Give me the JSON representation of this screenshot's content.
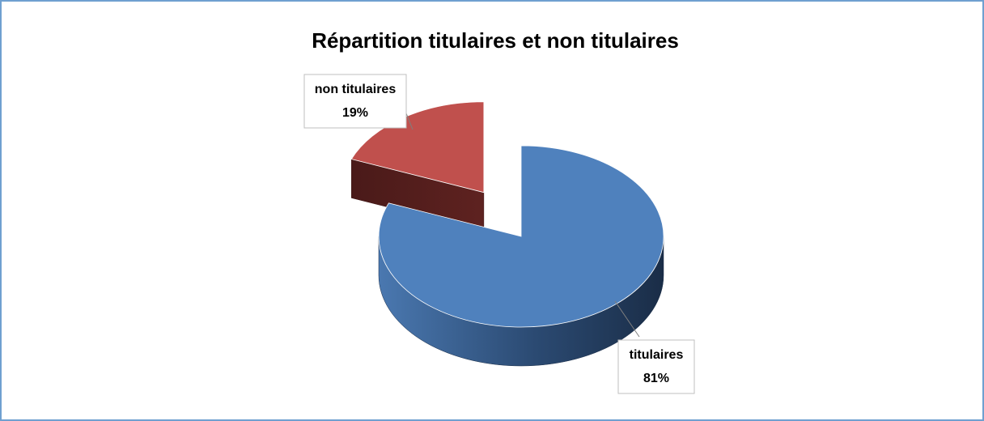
{
  "chart_data": {
    "type": "pie",
    "title": "Répartition titulaires et non titulaires",
    "categories": [
      "titulaires",
      "non titulaires"
    ],
    "values": [
      81,
      19
    ],
    "value_labels": [
      "81%",
      "19%"
    ],
    "colors": [
      "#4f81bd",
      "#c0504d"
    ],
    "exploded": [
      false,
      true
    ]
  }
}
